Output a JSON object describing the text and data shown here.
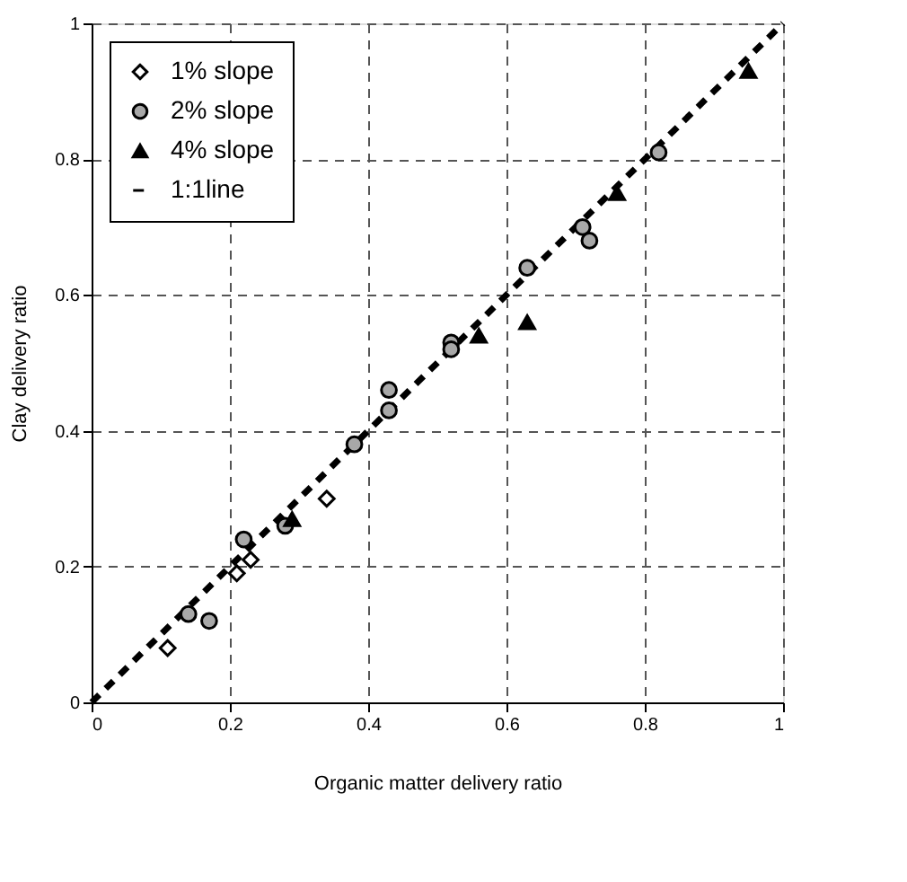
{
  "chart_data": {
    "type": "scatter",
    "xlabel": "Organic matter delivery ratio",
    "ylabel": "Clay delivery ratio",
    "xlim": [
      0,
      1
    ],
    "ylim": [
      0,
      1
    ],
    "xticks": [
      0,
      0.2,
      0.4,
      0.6,
      0.8,
      1
    ],
    "yticks": [
      0,
      0.2,
      0.4,
      0.6,
      0.8,
      1
    ],
    "grid": true,
    "legend": "top left",
    "series": [
      {
        "name": "1% slope",
        "marker": "diamond",
        "color": "#ffffff",
        "x": [
          0.11,
          0.21,
          0.23,
          0.34
        ],
        "values": [
          0.08,
          0.19,
          0.21,
          0.3
        ]
      },
      {
        "name": "2% slope",
        "marker": "circle",
        "color": "#a8a8a8",
        "x": [
          0.14,
          0.17,
          0.22,
          0.28,
          0.38,
          0.43,
          0.43,
          0.52,
          0.52,
          0.63,
          0.71,
          0.72,
          0.82
        ],
        "values": [
          0.13,
          0.12,
          0.24,
          0.26,
          0.38,
          0.46,
          0.43,
          0.53,
          0.52,
          0.64,
          0.7,
          0.68,
          0.81
        ]
      },
      {
        "name": "4% slope",
        "marker": "triangle",
        "color": "#000000",
        "x": [
          0.29,
          0.56,
          0.63,
          0.76,
          0.95
        ],
        "values": [
          0.27,
          0.54,
          0.56,
          0.75,
          0.93
        ]
      },
      {
        "name": "1:1line",
        "type": "line",
        "line_style": "dashed",
        "color": "#000000",
        "x": [
          0,
          1
        ],
        "values": [
          0,
          1
        ]
      }
    ]
  }
}
